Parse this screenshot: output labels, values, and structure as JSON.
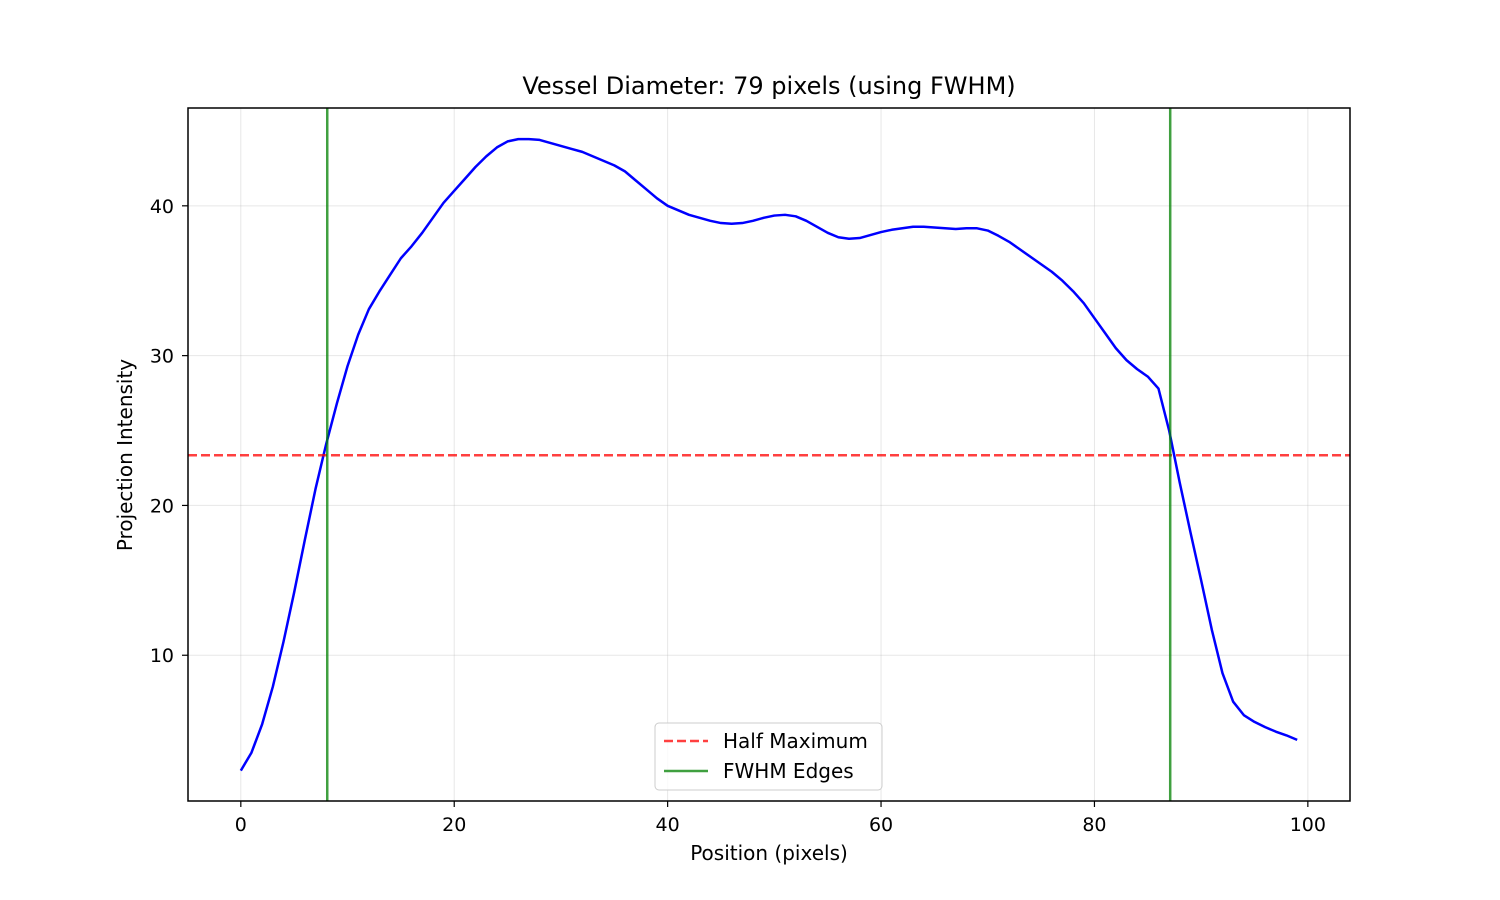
{
  "chart_data": {
    "type": "line",
    "title": "Vessel Diameter: 79 pixels (using FWHM)",
    "xlabel": "Position (pixels)",
    "ylabel": "Projection Intensity",
    "xlim": [
      -4.95,
      103.95
    ],
    "ylim": [
      0.27,
      46.53
    ],
    "xticks": [
      0,
      20,
      40,
      60,
      80,
      100
    ],
    "yticks": [
      10,
      20,
      30,
      40
    ],
    "grid": true,
    "legend_position": "lower center",
    "colors": {
      "profile": "#0000ff",
      "half_max": "#ff0000",
      "edges": "#008000"
    },
    "series": [
      {
        "x": [
          0,
          1,
          2,
          3,
          4,
          5,
          6,
          7,
          8,
          9,
          10,
          11,
          12,
          13,
          14,
          15,
          16,
          17,
          18,
          19,
          20,
          21,
          22,
          23,
          24,
          25,
          26,
          27,
          28,
          29,
          30,
          31,
          32,
          33,
          34,
          35,
          36,
          37,
          38,
          39,
          40,
          41,
          42,
          43,
          44,
          45,
          46,
          47,
          48,
          49,
          50,
          51,
          52,
          53,
          54,
          55,
          56,
          57,
          58,
          59,
          60,
          61,
          62,
          63,
          64,
          65,
          66,
          67,
          68,
          69,
          70,
          71,
          72,
          73,
          74,
          75,
          76,
          77,
          78,
          79,
          80,
          81,
          82,
          83,
          84,
          85,
          86,
          87,
          88,
          89,
          90,
          91,
          92,
          93,
          94,
          95,
          96,
          97,
          98,
          99
        ],
        "values": [
          2.3,
          3.5,
          5.4,
          7.9,
          10.9,
          14.2,
          17.7,
          21.1,
          24.1,
          26.8,
          29.3,
          31.4,
          33.1,
          34.3,
          35.4,
          36.5,
          37.3,
          38.2,
          39.2,
          40.2,
          41.0,
          41.8,
          42.6,
          43.3,
          43.9,
          44.3,
          44.45,
          44.45,
          44.4,
          44.2,
          44.0,
          43.8,
          43.6,
          43.3,
          43.0,
          42.7,
          42.3,
          41.7,
          41.1,
          40.5,
          40.0,
          39.7,
          39.4,
          39.2,
          39.0,
          38.85,
          38.8,
          38.85,
          39.0,
          39.2,
          39.35,
          39.4,
          39.3,
          39.0,
          38.6,
          38.2,
          37.9,
          37.8,
          37.85,
          38.05,
          38.25,
          38.4,
          38.5,
          38.6,
          38.6,
          38.55,
          38.5,
          38.45,
          38.5,
          38.5,
          38.35,
          38.0,
          37.6,
          37.1,
          36.6,
          36.1,
          35.6,
          35.0,
          34.3,
          33.5,
          32.5,
          31.5,
          30.5,
          29.7,
          29.1,
          28.6,
          27.8,
          25.0,
          21.5,
          18.2,
          15.0,
          11.7,
          8.8,
          6.9,
          6.0,
          5.55,
          5.2,
          4.9,
          4.65,
          4.35
        ]
      },
      {
        "name": "Half Maximum",
        "values": [
          23.35
        ]
      },
      {
        "name": "FWHM Edges",
        "x": [
          8.1,
          87.1
        ]
      }
    ]
  }
}
